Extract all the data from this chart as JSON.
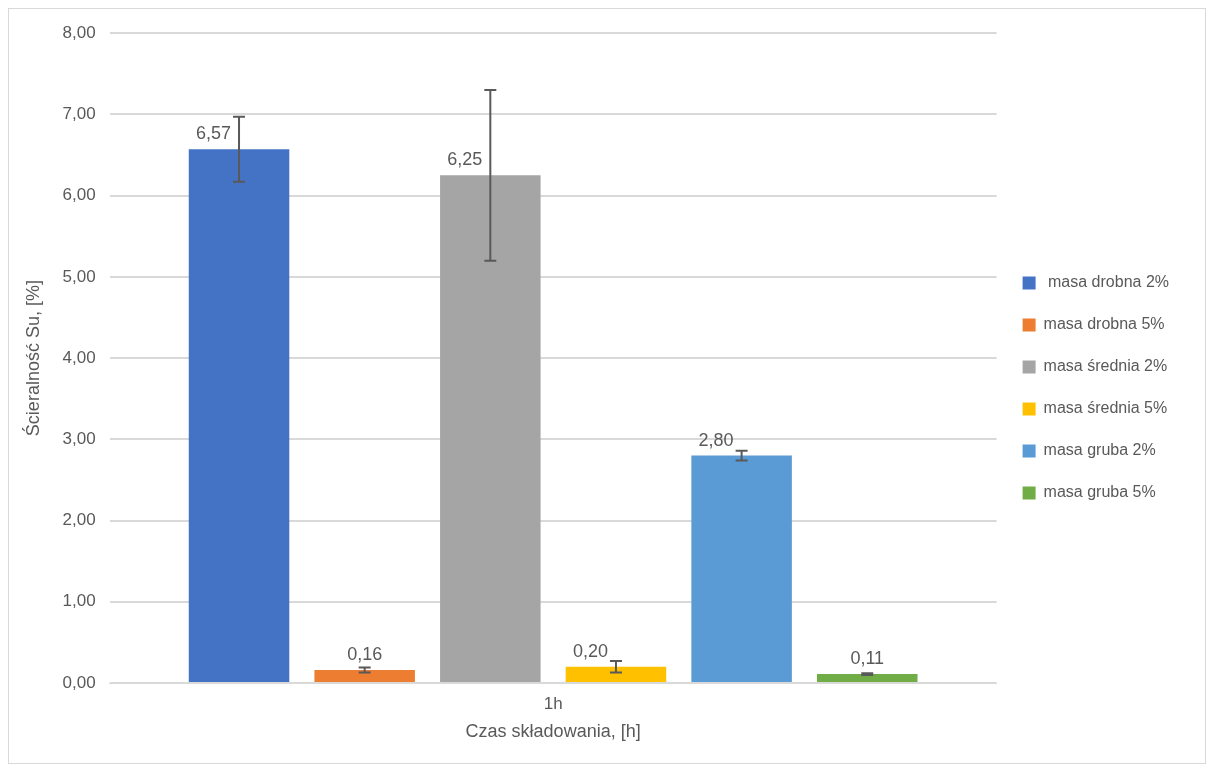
{
  "chart_data": {
    "type": "bar",
    "xlabel": "Czas składowania, [h]",
    "ylabel": "Ścieralność Su, [%]",
    "categories": [
      "1h"
    ],
    "series": [
      {
        "name": " masa drobna 2%",
        "color": "#4472c4",
        "values": [
          6.57
        ],
        "errors": [
          0.4
        ],
        "value_labels": [
          "6,57"
        ]
      },
      {
        "name": "masa drobna 5%",
        "color": "#ed7d31",
        "values": [
          0.16
        ],
        "errors": [
          0.03
        ],
        "value_labels": [
          "0,16"
        ]
      },
      {
        "name": "masa średnia 2%",
        "color": "#a5a5a5",
        "values": [
          6.25
        ],
        "errors": [
          1.05
        ],
        "value_labels": [
          "6,25"
        ]
      },
      {
        "name": "masa średnia 5%",
        "color": "#ffc000",
        "values": [
          0.2
        ],
        "errors": [
          0.07
        ],
        "value_labels": [
          "0,20"
        ]
      },
      {
        "name": "masa gruba 2%",
        "color": "#5b9bd5",
        "values": [
          2.8
        ],
        "errors": [
          0.06
        ],
        "value_labels": [
          "2,80"
        ]
      },
      {
        "name": "masa gruba 5%",
        "color": "#70ad47",
        "values": [
          0.11
        ],
        "errors": [
          0.01
        ],
        "value_labels": [
          "0,11"
        ]
      }
    ],
    "ylim": [
      0,
      8
    ],
    "yticks": [
      {
        "value": 0,
        "label": "0,00"
      },
      {
        "value": 1,
        "label": "1,00"
      },
      {
        "value": 2,
        "label": "2,00"
      },
      {
        "value": 3,
        "label": "3,00"
      },
      {
        "value": 4,
        "label": "4,00"
      },
      {
        "value": 5,
        "label": "5,00"
      },
      {
        "value": 6,
        "label": "6,00"
      },
      {
        "value": 7,
        "label": "7,00"
      },
      {
        "value": 8,
        "label": "8,00"
      }
    ],
    "grid": "y",
    "legend": "right"
  }
}
